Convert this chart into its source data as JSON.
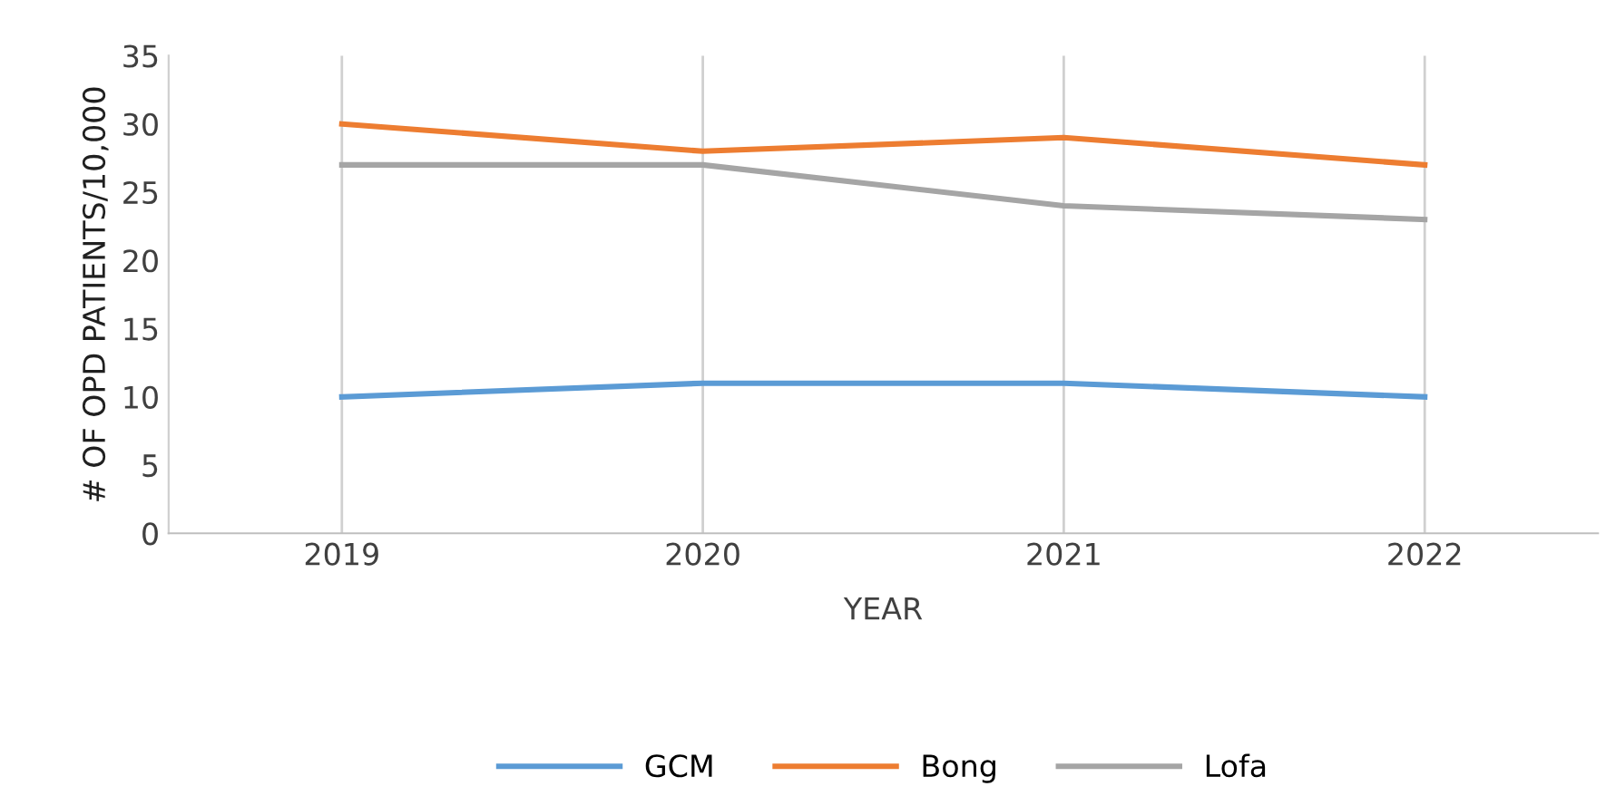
{
  "chart_data": {
    "type": "line",
    "xlabel": "YEAR",
    "ylabel": "# OF OPD PATIENTS/10,000",
    "categories": [
      "2019",
      "2020",
      "2021",
      "2022"
    ],
    "series": [
      {
        "name": "GCM",
        "color": "#5b9bd5",
        "values": [
          10,
          11,
          11,
          10
        ]
      },
      {
        "name": "Bong",
        "color": "#ed7d31",
        "values": [
          30,
          28,
          29,
          27
        ]
      },
      {
        "name": "Lofa",
        "color": "#a5a5a5",
        "values": [
          27,
          27,
          24,
          23
        ]
      }
    ],
    "ylim": [
      0,
      35
    ],
    "yticks": [
      0,
      5,
      10,
      15,
      20,
      25,
      30,
      35
    ],
    "grid": "x",
    "legend": "bottom",
    "marker": "none",
    "line_style": "solid"
  }
}
